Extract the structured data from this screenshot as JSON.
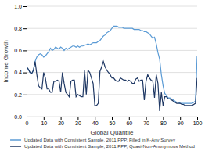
{
  "chart_data": {
    "type": "line",
    "xlabel": "Global Quantile",
    "ylabel": "Income Growth",
    "x": [
      0,
      1,
      2,
      3,
      4,
      5,
      6,
      7,
      8,
      9,
      10,
      11,
      12,
      13,
      14,
      15,
      16,
      17,
      18,
      19,
      20,
      21,
      22,
      23,
      24,
      25,
      26,
      27,
      28,
      29,
      30,
      31,
      32,
      33,
      34,
      35,
      36,
      37,
      38,
      39,
      40,
      41,
      42,
      43,
      44,
      45,
      46,
      47,
      48,
      49,
      50,
      51,
      52,
      53,
      54,
      55,
      56,
      57,
      58,
      59,
      60,
      61,
      62,
      63,
      64,
      65,
      66,
      67,
      68,
      69,
      70,
      71,
      72,
      73,
      74,
      75,
      76,
      77,
      78,
      79,
      80,
      81,
      82,
      83,
      84,
      85,
      86,
      87,
      88,
      89,
      90,
      91,
      92,
      93,
      94,
      95,
      96,
      97,
      98,
      99,
      100
    ],
    "series": [
      {
        "name": "Updated Data with Consistent Sample, 2011 PPP, Filled in K-Any Survey",
        "color": "#5b9bd5",
        "values": [
          0.45,
          0.43,
          0.4,
          0.39,
          0.42,
          0.5,
          0.54,
          0.56,
          0.57,
          0.56,
          0.54,
          0.55,
          0.57,
          0.59,
          0.62,
          0.6,
          0.61,
          0.63,
          0.62,
          0.61,
          0.63,
          0.62,
          0.6,
          0.62,
          0.61,
          0.62,
          0.63,
          0.64,
          0.64,
          0.63,
          0.64,
          0.63,
          0.64,
          0.64,
          0.65,
          0.65,
          0.66,
          0.65,
          0.66,
          0.67,
          0.67,
          0.67,
          0.68,
          0.69,
          0.71,
          0.73,
          0.74,
          0.76,
          0.77,
          0.78,
          0.8,
          0.82,
          0.82,
          0.82,
          0.81,
          0.81,
          0.81,
          0.8,
          0.8,
          0.8,
          0.8,
          0.8,
          0.8,
          0.79,
          0.79,
          0.79,
          0.79,
          0.78,
          0.78,
          0.77,
          0.77,
          0.76,
          0.75,
          0.73,
          0.71,
          0.72,
          0.66,
          0.58,
          0.52,
          0.38,
          0.28,
          0.21,
          0.19,
          0.17,
          0.17,
          0.16,
          0.15,
          0.14,
          0.13,
          0.13,
          0.12,
          0.12,
          0.12,
          0.12,
          0.12,
          0.12,
          0.12,
          0.12,
          0.13,
          0.14,
          0.55
        ]
      },
      {
        "name": "Updated Data with Consistent Sample, 2011 PPP, Quasi-Non-Anonymous Method",
        "color": "#1f3864",
        "values": [
          0.45,
          0.43,
          0.4,
          0.39,
          0.42,
          0.5,
          0.38,
          0.28,
          0.26,
          0.25,
          0.4,
          0.35,
          0.25,
          0.25,
          0.22,
          0.22,
          0.32,
          0.32,
          0.33,
          0.32,
          0.22,
          0.4,
          0.3,
          0.22,
          0.2,
          0.18,
          0.32,
          0.33,
          0.33,
          0.18,
          0.2,
          0.19,
          0.18,
          0.18,
          0.42,
          0.2,
          0.42,
          0.4,
          0.35,
          0.3,
          0.1,
          0.1,
          0.12,
          0.41,
          0.45,
          0.5,
          0.45,
          0.42,
          0.4,
          0.38,
          0.35,
          0.35,
          0.33,
          0.32,
          0.32,
          0.35,
          0.34,
          0.33,
          0.33,
          0.32,
          0.33,
          0.32,
          0.3,
          0.3,
          0.34,
          0.35,
          0.32,
          0.33,
          0.33,
          0.15,
          0.32,
          0.38,
          0.35,
          0.33,
          0.32,
          0.17,
          0.38,
          0.3,
          0.05,
          0.22,
          0.1,
          0.18,
          0.18,
          0.16,
          0.16,
          0.15,
          0.14,
          0.13,
          0.12,
          0.12,
          0.12,
          0.11,
          0.11,
          0.1,
          0.1,
          0.1,
          0.1,
          0.1,
          0.11,
          0.12,
          0.35
        ]
      }
    ],
    "xlim": [
      0,
      100
    ],
    "ylim": [
      0.0,
      1.0
    ],
    "xticks": [
      0,
      10,
      20,
      30,
      40,
      50,
      60,
      70,
      80,
      90,
      100
    ],
    "yticks": [
      {
        "value": 0.0,
        "label": "0.0"
      },
      0.2,
      0.4,
      0.6,
      0.8,
      {
        "value": 1.0,
        "label": "1.0"
      }
    ],
    "grid": true,
    "legend": "bottom"
  }
}
